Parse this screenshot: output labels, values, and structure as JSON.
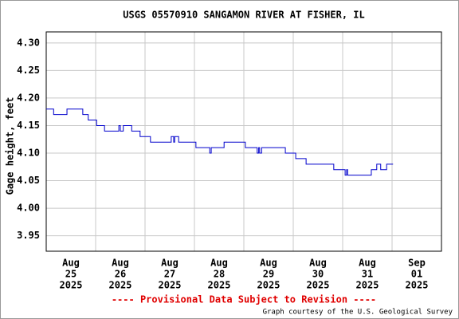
{
  "chart_data": {
    "type": "line",
    "title": "USGS 05570910 SANGAMON RIVER AT FISHER, IL",
    "y_label": "Gage height, feet",
    "footer_notice": "---- Provisional Data Subject to Revision ----",
    "footer_credit": "Graph courtesy of the U.S. Geological Survey",
    "grid": true,
    "xlim": [
      0,
      8
    ],
    "ylim": [
      3.922,
      4.32
    ],
    "xticks": [
      {
        "value": 0,
        "label": [
          "Aug",
          "25",
          "2025"
        ]
      },
      {
        "value": 1,
        "label": [
          "Aug",
          "26",
          "2025"
        ]
      },
      {
        "value": 2,
        "label": [
          "Aug",
          "27",
          "2025"
        ]
      },
      {
        "value": 3,
        "label": [
          "Aug",
          "28",
          "2025"
        ]
      },
      {
        "value": 4,
        "label": [
          "Aug",
          "29",
          "2025"
        ]
      },
      {
        "value": 5,
        "label": [
          "Aug",
          "30",
          "2025"
        ]
      },
      {
        "value": 6,
        "label": [
          "Aug",
          "31",
          "2025"
        ]
      },
      {
        "value": 7,
        "label": [
          "Sep",
          "01",
          "2025"
        ]
      }
    ],
    "yticks": [
      {
        "value": 3.95,
        "label": "3.95"
      },
      {
        "value": 4.0,
        "label": "4.00"
      },
      {
        "value": 4.05,
        "label": "4.05"
      },
      {
        "value": 4.1,
        "label": "4.10"
      },
      {
        "value": 4.15,
        "label": "4.15"
      },
      {
        "value": 4.2,
        "label": "4.20"
      },
      {
        "value": 4.25,
        "label": "4.25"
      },
      {
        "value": 4.3,
        "label": "4.30"
      }
    ],
    "x": [
      0,
      0.15,
      0.15,
      0.42,
      0.42,
      0.74,
      0.74,
      0.85,
      0.85,
      1.02,
      1.02,
      1.18,
      1.18,
      1.47,
      1.47,
      1.5,
      1.5,
      1.56,
      1.56,
      1.73,
      1.73,
      1.9,
      1.9,
      2.11,
      2.11,
      2.53,
      2.53,
      2.58,
      2.58,
      2.6,
      2.6,
      2.68,
      2.68,
      3.03,
      3.03,
      3.31,
      3.31,
      3.34,
      3.34,
      3.6,
      3.6,
      4.03,
      4.03,
      4.27,
      4.27,
      4.3,
      4.3,
      4.32,
      4.32,
      4.36,
      4.36,
      4.84,
      4.84,
      5.05,
      5.05,
      5.26,
      5.26,
      5.82,
      5.82,
      6.05,
      6.05,
      6.08,
      6.08,
      6.1,
      6.1,
      6.58,
      6.58,
      6.69,
      6.69,
      6.77,
      6.77,
      6.89,
      6.89,
      7.02
    ],
    "series": [
      {
        "color": "#0000cc",
        "values": [
          4.18,
          4.18,
          4.17,
          4.17,
          4.18,
          4.18,
          4.17,
          4.17,
          4.16,
          4.16,
          4.15,
          4.15,
          4.14,
          4.14,
          4.15,
          4.15,
          4.14,
          4.14,
          4.15,
          4.15,
          4.14,
          4.14,
          4.13,
          4.13,
          4.12,
          4.12,
          4.13,
          4.13,
          4.12,
          4.12,
          4.13,
          4.13,
          4.12,
          4.12,
          4.11,
          4.11,
          4.1,
          4.1,
          4.11,
          4.11,
          4.12,
          4.12,
          4.11,
          4.11,
          4.1,
          4.1,
          4.11,
          4.11,
          4.1,
          4.1,
          4.11,
          4.11,
          4.1,
          4.1,
          4.09,
          4.09,
          4.08,
          4.08,
          4.07,
          4.07,
          4.06,
          4.06,
          4.07,
          4.07,
          4.06,
          4.06,
          4.07,
          4.07,
          4.08,
          4.08,
          4.07,
          4.07,
          4.08,
          4.08
        ]
      }
    ]
  }
}
